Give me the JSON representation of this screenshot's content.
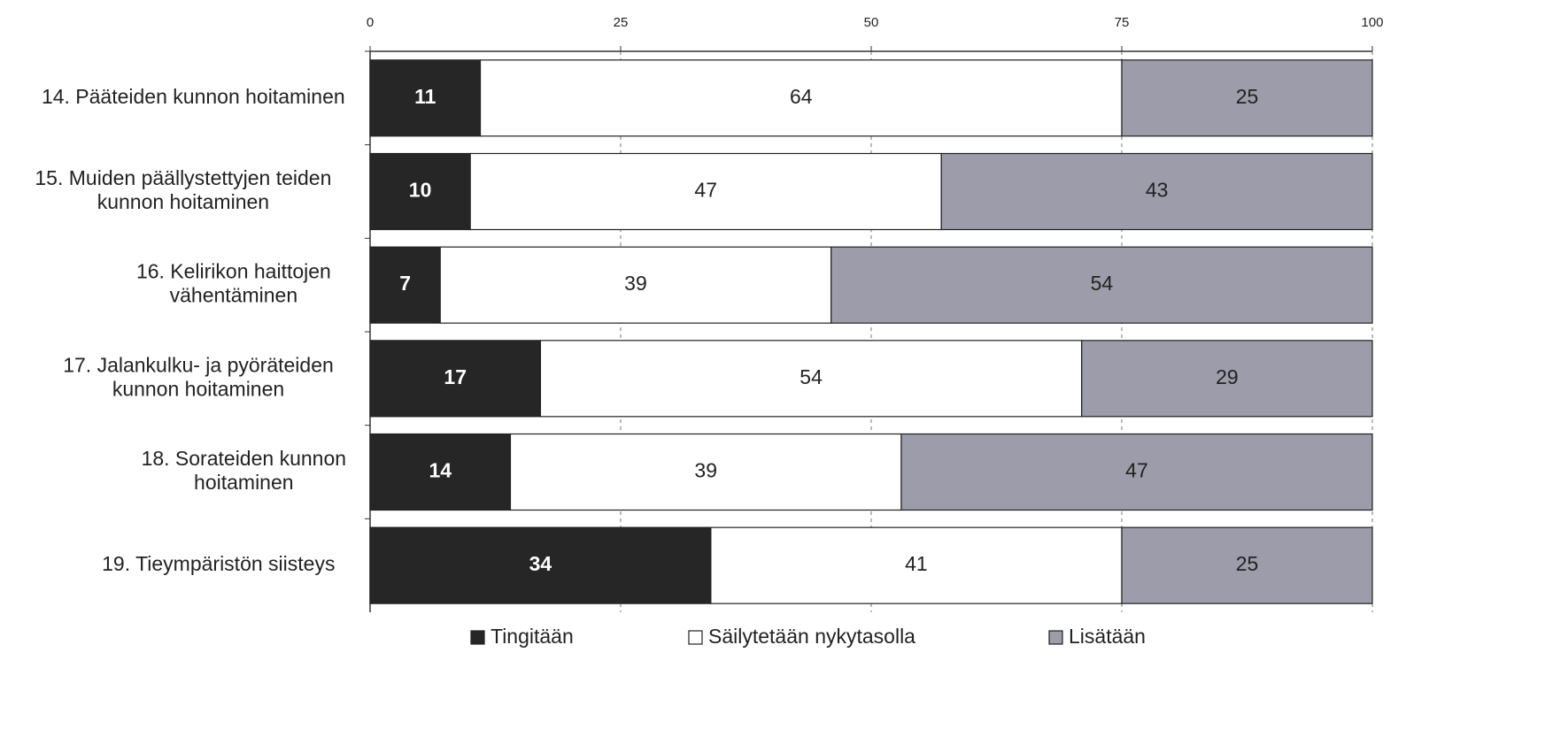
{
  "chart_data": {
    "type": "stacked_barh",
    "categories": [
      "14. Pääteiden kunnon hoitaminen",
      "15. Muiden päällystettyjen teiden\nkunnon hoitaminen",
      "16. Kelirikon haittojen\nvähentäminen",
      "17. Jalankulku- ja pyöräteiden\nkunnon hoitaminen",
      "18. Sorateiden kunnon\nhoitaminen",
      "19. Tieympäristön siisteys"
    ],
    "series": [
      {
        "name": "Tingitään",
        "color": "#262626",
        "values": [
          11,
          10,
          7,
          17,
          14,
          34
        ]
      },
      {
        "name": "Säilytetään nykytasolla",
        "color": "#ffffff",
        "values": [
          64,
          47,
          39,
          54,
          39,
          41
        ]
      },
      {
        "name": "Lisätään",
        "color": "#9c9caa",
        "values": [
          25,
          43,
          54,
          29,
          47,
          25
        ]
      }
    ],
    "xlim": [
      0,
      100
    ],
    "xticks": [
      0,
      25,
      50,
      75,
      100
    ],
    "grid": true,
    "legend": "bottom"
  }
}
